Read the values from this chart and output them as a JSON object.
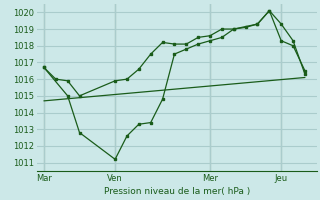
{
  "bg_color": "#cce8e8",
  "grid_color": "#aacccc",
  "line_color": "#1a5c1a",
  "marker_color": "#1a5c1a",
  "xtick_labels": [
    "Mar",
    "Ven",
    "Mer",
    "Jeu"
  ],
  "xtick_positions": [
    0,
    3,
    7,
    10
  ],
  "xlabel_text": "Pression niveau de la mer( hPa )",
  "ylim": [
    1010.5,
    1020.5
  ],
  "yticks": [
    1011,
    1012,
    1013,
    1014,
    1015,
    1016,
    1017,
    1018,
    1019,
    1020
  ],
  "xlim": [
    -0.3,
    11.5
  ],
  "series1_x": [
    0,
    0.5,
    1.0,
    1.5,
    3.0,
    3.5,
    4.0,
    4.5,
    5.0,
    5.5,
    6.0,
    6.5,
    7.0,
    7.5,
    8.0,
    8.5,
    9.0,
    9.5,
    10.0,
    10.5,
    11.0
  ],
  "series1_y": [
    1016.7,
    1016.0,
    1015.9,
    1015.0,
    1015.9,
    1016.0,
    1016.6,
    1017.5,
    1018.2,
    1018.1,
    1018.1,
    1018.5,
    1018.6,
    1019.0,
    1019.0,
    1019.1,
    1019.3,
    1020.1,
    1018.3,
    1018.0,
    1016.5
  ],
  "series2_x": [
    0,
    1.0,
    1.5,
    3.0,
    3.5,
    4.0,
    4.5,
    5.0,
    5.5,
    6.0,
    6.5,
    7.0,
    7.5,
    8.0,
    9.0,
    9.5,
    10.0,
    10.5,
    11.0
  ],
  "series2_y": [
    1016.7,
    1015.0,
    1012.8,
    1011.2,
    1012.6,
    1013.3,
    1013.4,
    1014.8,
    1017.5,
    1017.8,
    1018.1,
    1018.3,
    1018.5,
    1019.0,
    1019.3,
    1020.1,
    1019.3,
    1018.3,
    1016.3
  ],
  "series3_x": [
    0,
    11.0
  ],
  "series3_y": [
    1014.7,
    1016.1
  ]
}
